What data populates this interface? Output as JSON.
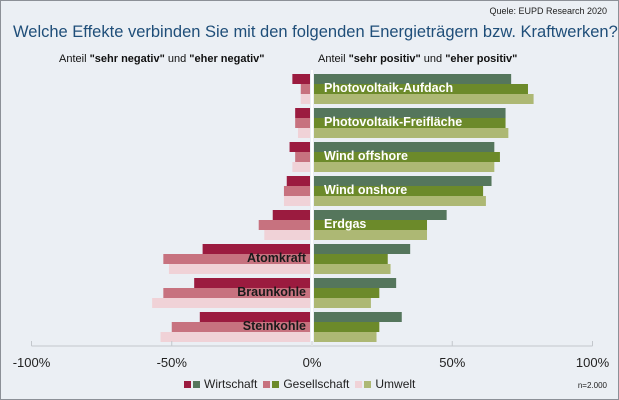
{
  "source": "Quele: EUPD Research 2020",
  "title": "Welche Effekte verbinden Sie mit den folgenden Energieträgern bzw. Kraftwerken?",
  "subheads": {
    "negative": {
      "prefix": "Anteil ",
      "a": "\"sehr negativ\"",
      "mid": " und ",
      "b": "\"eher negativ\""
    },
    "positive": {
      "prefix": "Anteil ",
      "a": "\"sehr positiv\"",
      "mid": " und ",
      "b": "\"eher positiv\""
    }
  },
  "sample_note": "n=2.000",
  "colors": {
    "Wirtschaft": {
      "neg": "#9b1b3f",
      "pos": "#55765c"
    },
    "Gesellschaft": {
      "neg": "#c7727f",
      "pos": "#6c8a2a"
    },
    "Umwelt": {
      "neg": "#f0d2d7",
      "pos": "#adb874"
    }
  },
  "chart_data": {
    "type": "bar",
    "orientation": "horizontal-diverging",
    "title": "Welche Effekte verbinden Sie mit den folgenden Energieträgern bzw. Kraftwerken?",
    "xlabel": "",
    "ylabel": "",
    "xlim": [
      -100,
      100
    ],
    "xticks": [
      "-100%",
      "-50%",
      "0%",
      "50%",
      "100%"
    ],
    "xtick_values": [
      -100,
      -50,
      0,
      50,
      100
    ],
    "grid": false,
    "legend_position": "bottom",
    "categories": [
      "Photovoltaik-Aufdach",
      "Photovoltaik-Freifläche",
      "Wind offshore",
      "Wind onshore",
      "Erdgas",
      "Atomkraft",
      "Braunkohle",
      "Steinkohle"
    ],
    "label_side": [
      "pos",
      "pos",
      "pos",
      "pos",
      "pos",
      "neg",
      "neg",
      "neg"
    ],
    "series": [
      {
        "name": "Wirtschaft",
        "negative": [
          -7,
          -6,
          -8,
          -9,
          -14,
          -39,
          -42,
          -40
        ],
        "positive": [
          71,
          69,
          65,
          64,
          48,
          35,
          30,
          32
        ]
      },
      {
        "name": "Gesellschaft",
        "negative": [
          -4,
          -6,
          -6,
          -10,
          -19,
          -53,
          -53,
          -50
        ],
        "positive": [
          77,
          69,
          67,
          61,
          41,
          27,
          24,
          24
        ]
      },
      {
        "name": "Umwelt",
        "negative": [
          -4,
          -5,
          -7,
          -10,
          -17,
          -51,
          -57,
          -54
        ],
        "positive": [
          79,
          70,
          65,
          62,
          41,
          28,
          21,
          23
        ]
      }
    ]
  }
}
